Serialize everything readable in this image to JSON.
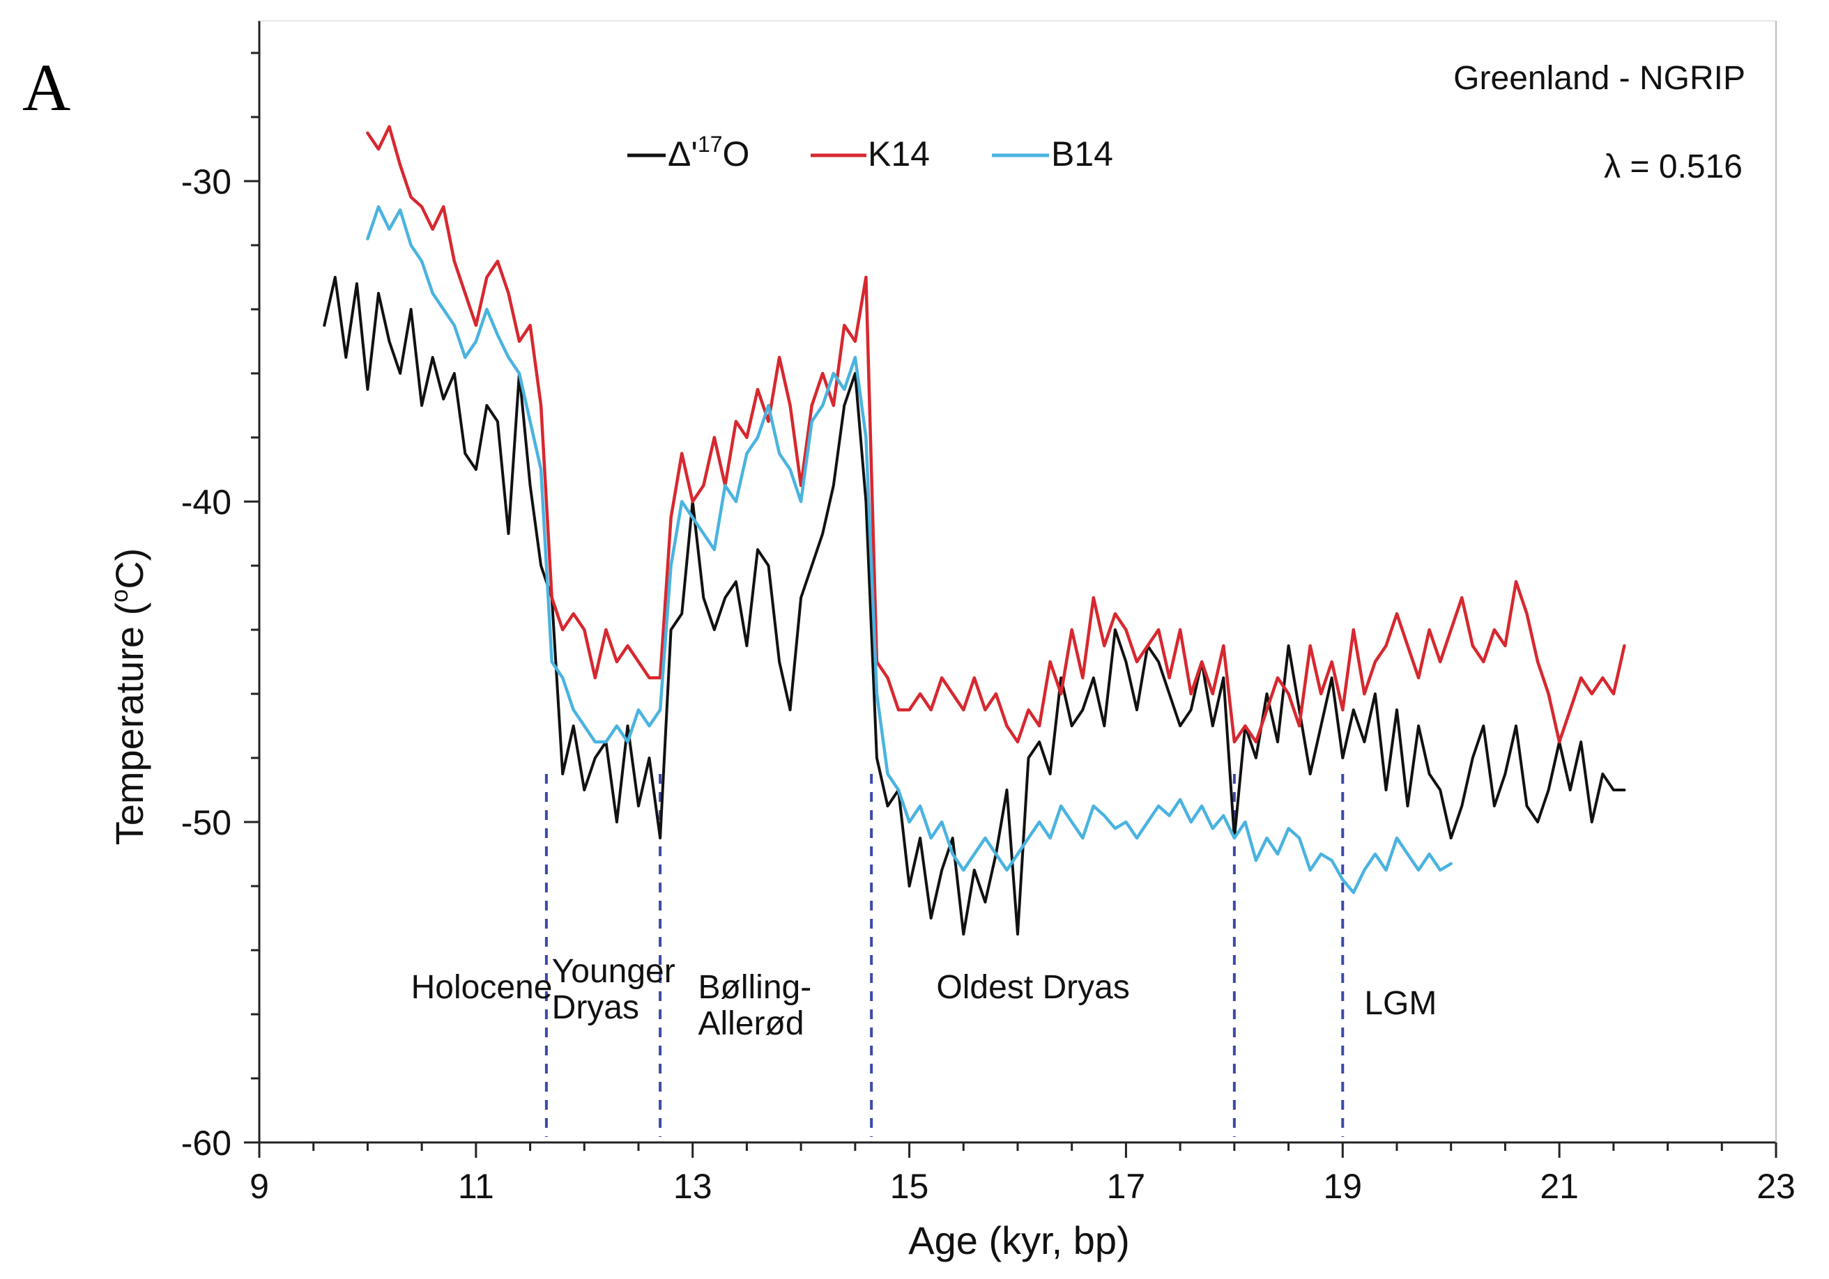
{
  "panel_label": "A",
  "chart_data": {
    "type": "line",
    "title": "Greenland - NGRIP",
    "subtitle": "λ = 0.516",
    "xlabel": "Age (kyr, bp)",
    "ylabel": "Temperature (",
    "ylabel_sup": "o",
    "ylabel_end": "C)",
    "xlim": [
      9,
      23
    ],
    "ylim": [
      -60,
      -25
    ],
    "x_ticks": [
      9,
      11,
      13,
      15,
      17,
      19,
      21,
      23
    ],
    "x_tick_labels": [
      "9",
      "11",
      "13",
      "15",
      "17",
      "19",
      "21",
      "23"
    ],
    "y_ticks": [
      -30,
      -40,
      -50,
      -60
    ],
    "y_tick_labels": [
      "-30",
      "-40",
      "-50",
      "-60"
    ],
    "legend": [
      {
        "label_main": "Δ'",
        "label_sup": "17",
        "label_end": "O",
        "color": "#111111"
      },
      {
        "label_main": "K14",
        "label_sup": "",
        "label_end": "",
        "color": "#d7282f"
      },
      {
        "label_main": "B14",
        "label_sup": "",
        "label_end": "",
        "color": "#4ab3df"
      }
    ],
    "series": [
      {
        "name": "Δ'17O",
        "color": "#111111",
        "x": [
          9.6,
          9.7,
          9.8,
          9.9,
          10.0,
          10.1,
          10.2,
          10.3,
          10.4,
          10.5,
          10.6,
          10.7,
          10.8,
          10.9,
          11.0,
          11.1,
          11.2,
          11.3,
          11.4,
          11.5,
          11.6,
          11.7,
          11.8,
          11.9,
          12.0,
          12.1,
          12.2,
          12.3,
          12.4,
          12.5,
          12.6,
          12.7,
          12.8,
          12.9,
          13.0,
          13.1,
          13.2,
          13.3,
          13.4,
          13.5,
          13.6,
          13.7,
          13.8,
          13.9,
          14.0,
          14.1,
          14.2,
          14.3,
          14.4,
          14.5,
          14.6,
          14.7,
          14.8,
          14.9,
          15.0,
          15.1,
          15.2,
          15.3,
          15.4,
          15.5,
          15.6,
          15.7,
          15.8,
          15.9,
          16.0,
          16.1,
          16.2,
          16.3,
          16.4,
          16.5,
          16.6,
          16.7,
          16.8,
          16.9,
          17.0,
          17.1,
          17.2,
          17.3,
          17.4,
          17.5,
          17.6,
          17.7,
          17.8,
          17.9,
          18.0,
          18.1,
          18.2,
          18.3,
          18.4,
          18.5,
          18.6,
          18.7,
          18.8,
          18.9,
          19.0,
          19.1,
          19.2,
          19.3,
          19.4,
          19.5,
          19.6,
          19.7,
          19.8,
          19.9,
          20.0,
          20.1,
          20.2,
          20.3,
          20.4,
          20.5,
          20.6,
          20.7,
          20.8,
          20.9,
          21.0,
          21.1,
          21.2,
          21.3,
          21.4,
          21.5,
          21.6
        ],
        "y": [
          -34.5,
          -33.0,
          -35.5,
          -33.2,
          -36.5,
          -33.5,
          -35.0,
          -36.0,
          -34.0,
          -37.0,
          -35.5,
          -36.8,
          -36.0,
          -38.5,
          -39.0,
          -37.0,
          -37.5,
          -41.0,
          -36.0,
          -39.5,
          -42.0,
          -43.0,
          -48.5,
          -47.0,
          -49.0,
          -48.0,
          -47.5,
          -50.0,
          -47.0,
          -49.5,
          -48.0,
          -50.5,
          -44.0,
          -43.5,
          -40.0,
          -43.0,
          -44.0,
          -43.0,
          -42.5,
          -44.5,
          -41.5,
          -42.0,
          -45.0,
          -46.5,
          -43.0,
          -42.0,
          -41.0,
          -39.5,
          -37.0,
          -36.0,
          -40.0,
          -48.0,
          -49.5,
          -49.0,
          -52.0,
          -50.5,
          -53.0,
          -51.5,
          -50.5,
          -53.5,
          -51.5,
          -52.5,
          -51.0,
          -49.0,
          -53.5,
          -48.0,
          -47.5,
          -48.5,
          -45.5,
          -47.0,
          -46.5,
          -45.5,
          -47.0,
          -44.0,
          -45.0,
          -46.5,
          -44.5,
          -45.0,
          -46.0,
          -47.0,
          -46.5,
          -45.0,
          -47.0,
          -45.5,
          -50.5,
          -47.0,
          -48.0,
          -46.0,
          -47.5,
          -44.5,
          -46.5,
          -48.5,
          -47.0,
          -45.5,
          -48.0,
          -46.5,
          -47.5,
          -46.0,
          -49.0,
          -46.5,
          -49.5,
          -47.0,
          -48.5,
          -49.0,
          -50.5,
          -49.5,
          -48.0,
          -47.0,
          -49.5,
          -48.5,
          -47.0,
          -49.5,
          -50.0,
          -49.0,
          -47.5,
          -49.0,
          -47.5,
          -50.0,
          -48.5,
          -49.0,
          -49.0
        ]
      },
      {
        "name": "K14",
        "color": "#d7282f",
        "x": [
          10.0,
          10.1,
          10.2,
          10.3,
          10.4,
          10.5,
          10.6,
          10.7,
          10.8,
          10.9,
          11.0,
          11.1,
          11.2,
          11.3,
          11.4,
          11.5,
          11.6,
          11.7,
          11.8,
          11.9,
          12.0,
          12.1,
          12.2,
          12.3,
          12.4,
          12.5,
          12.6,
          12.7,
          12.8,
          12.9,
          13.0,
          13.1,
          13.2,
          13.3,
          13.4,
          13.5,
          13.6,
          13.7,
          13.8,
          13.9,
          14.0,
          14.1,
          14.2,
          14.3,
          14.4,
          14.5,
          14.6,
          14.7,
          14.8,
          14.9,
          15.0,
          15.1,
          15.2,
          15.3,
          15.4,
          15.5,
          15.6,
          15.7,
          15.8,
          15.9,
          16.0,
          16.1,
          16.2,
          16.3,
          16.4,
          16.5,
          16.6,
          16.7,
          16.8,
          16.9,
          17.0,
          17.1,
          17.2,
          17.3,
          17.4,
          17.5,
          17.6,
          17.7,
          17.8,
          17.9,
          18.0,
          18.1,
          18.2,
          18.3,
          18.4,
          18.5,
          18.6,
          18.7,
          18.8,
          18.9,
          19.0,
          19.1,
          19.2,
          19.3,
          19.4,
          19.5,
          19.6,
          19.7,
          19.8,
          19.9,
          20.0,
          20.1,
          20.2,
          20.3,
          20.4,
          20.5,
          20.6,
          20.7,
          20.8,
          20.9,
          21.0,
          21.1,
          21.2,
          21.3,
          21.4,
          21.5,
          21.6
        ],
        "y": [
          -28.5,
          -29.0,
          -28.3,
          -29.5,
          -30.5,
          -30.8,
          -31.5,
          -30.8,
          -32.5,
          -33.5,
          -34.5,
          -33.0,
          -32.5,
          -33.5,
          -35.0,
          -34.5,
          -37.0,
          -43.0,
          -44.0,
          -43.5,
          -44.0,
          -45.5,
          -44.0,
          -45.0,
          -44.5,
          -45.0,
          -45.5,
          -45.5,
          -40.5,
          -38.5,
          -40.0,
          -39.5,
          -38.0,
          -39.5,
          -37.5,
          -38.0,
          -36.5,
          -37.5,
          -35.5,
          -37.0,
          -39.5,
          -37.0,
          -36.0,
          -37.0,
          -34.5,
          -35.0,
          -33.0,
          -45.0,
          -45.5,
          -46.5,
          -46.5,
          -46.0,
          -46.5,
          -45.5,
          -46.0,
          -46.5,
          -45.5,
          -46.5,
          -46.0,
          -47.0,
          -47.5,
          -46.5,
          -47.0,
          -45.0,
          -46.0,
          -44.0,
          -45.5,
          -43.0,
          -44.5,
          -43.5,
          -44.0,
          -45.0,
          -44.5,
          -44.0,
          -45.5,
          -44.0,
          -46.0,
          -45.0,
          -46.0,
          -44.5,
          -47.5,
          -47.0,
          -47.5,
          -46.5,
          -45.5,
          -46.0,
          -47.0,
          -44.5,
          -46.0,
          -45.0,
          -46.5,
          -44.0,
          -46.0,
          -45.0,
          -44.5,
          -43.5,
          -44.5,
          -45.5,
          -44.0,
          -45.0,
          -44.0,
          -43.0,
          -44.5,
          -45.0,
          -44.0,
          -44.5,
          -42.5,
          -43.5,
          -45.0,
          -46.0,
          -47.5,
          -46.5,
          -45.5,
          -46.0,
          -45.5,
          -46.0,
          -44.5
        ]
      },
      {
        "name": "B14",
        "color": "#4ab3df",
        "x": [
          10.0,
          10.1,
          10.2,
          10.3,
          10.4,
          10.5,
          10.6,
          10.7,
          10.8,
          10.9,
          11.0,
          11.1,
          11.2,
          11.3,
          11.4,
          11.5,
          11.6,
          11.7,
          11.8,
          11.9,
          12.0,
          12.1,
          12.2,
          12.3,
          12.4,
          12.5,
          12.6,
          12.7,
          12.8,
          12.9,
          13.0,
          13.1,
          13.2,
          13.3,
          13.4,
          13.5,
          13.6,
          13.7,
          13.8,
          13.9,
          14.0,
          14.1,
          14.2,
          14.3,
          14.4,
          14.5,
          14.6,
          14.7,
          14.8,
          14.9,
          15.0,
          15.1,
          15.2,
          15.3,
          15.4,
          15.5,
          15.6,
          15.7,
          15.8,
          15.9,
          16.0,
          16.1,
          16.2,
          16.3,
          16.4,
          16.5,
          16.6,
          16.7,
          16.8,
          16.9,
          17.0,
          17.1,
          17.2,
          17.3,
          17.4,
          17.5,
          17.6,
          17.7,
          17.8,
          17.9,
          18.0,
          18.1,
          18.2,
          18.3,
          18.4,
          18.5,
          18.6,
          18.7,
          18.8,
          18.9,
          19.0,
          19.1,
          19.2,
          19.3,
          19.4,
          19.5,
          19.6,
          19.7,
          19.8,
          19.9,
          20.0
        ],
        "y": [
          -31.8,
          -30.8,
          -31.5,
          -30.9,
          -32.0,
          -32.5,
          -33.5,
          -34.0,
          -34.5,
          -35.5,
          -35.0,
          -34.0,
          -34.8,
          -35.5,
          -36.0,
          -37.5,
          -39.0,
          -45.0,
          -45.5,
          -46.5,
          -47.0,
          -47.5,
          -47.5,
          -47.0,
          -47.5,
          -46.5,
          -47.0,
          -46.5,
          -42.0,
          -40.0,
          -40.5,
          -41.0,
          -41.5,
          -39.5,
          -40.0,
          -38.5,
          -38.0,
          -37.0,
          -38.5,
          -39.0,
          -40.0,
          -37.5,
          -37.0,
          -36.0,
          -36.5,
          -35.5,
          -38.0,
          -46.0,
          -48.5,
          -49.0,
          -50.0,
          -49.5,
          -50.5,
          -50.0,
          -51.0,
          -51.5,
          -51.0,
          -50.5,
          -51.0,
          -51.5,
          -51.0,
          -50.5,
          -50.0,
          -50.5,
          -49.5,
          -50.0,
          -50.5,
          -49.5,
          -49.8,
          -50.2,
          -50.0,
          -50.5,
          -50.0,
          -49.5,
          -49.8,
          -49.3,
          -50.0,
          -49.5,
          -50.2,
          -49.8,
          -50.5,
          -50.0,
          -51.2,
          -50.5,
          -51.0,
          -50.2,
          -50.5,
          -51.5,
          -51.0,
          -51.2,
          -51.8,
          -52.2,
          -51.5,
          -51.0,
          -51.5,
          -50.5,
          -51.0,
          -51.5,
          -51.0,
          -51.5,
          -51.3
        ]
      }
    ],
    "vlines": [
      11.65,
      12.7,
      14.65,
      18.0,
      19.0
    ],
    "vline_color": "#3b4aa8",
    "periods": [
      {
        "label": "Holocene",
        "lines": [
          "Holocene"
        ],
        "x": 10.4,
        "y": -55.5
      },
      {
        "label": "Younger Dryas",
        "lines": [
          "Younger",
          "Dryas"
        ],
        "x": 11.7,
        "y": -55.0
      },
      {
        "label": "Bølling-Allerød",
        "lines": [
          "Bølling-",
          "Allerød"
        ],
        "x": 13.05,
        "y": -55.5
      },
      {
        "label": "Oldest Dryas",
        "lines": [
          "Oldest Dryas"
        ],
        "x": 15.25,
        "y": -55.5
      },
      {
        "label": "LGM",
        "lines": [
          "LGM"
        ],
        "x": 19.2,
        "y": -56.0
      }
    ]
  }
}
